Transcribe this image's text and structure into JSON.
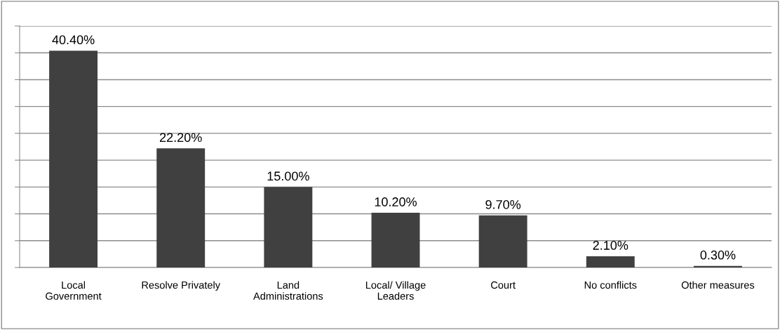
{
  "chart_data": {
    "type": "bar",
    "categories": [
      "Local\nGovernment",
      "Resolve Privately",
      "Land\nAdministrations",
      "Local/ Village\nLeaders",
      "Court",
      "No conflicts",
      "Other measures"
    ],
    "values": [
      40.4,
      22.2,
      15.0,
      10.2,
      9.7,
      2.1,
      0.3
    ],
    "value_labels": [
      "40.40%",
      "22.20%",
      "15.00%",
      "10.20%",
      "9.70%",
      "2.10%",
      "0.30%"
    ],
    "color": "#404040",
    "ylim": [
      0,
      45
    ],
    "yticks": [
      {
        "value": 0,
        "label": null
      },
      {
        "value": 5,
        "label": null
      },
      {
        "value": 10,
        "label": null
      },
      {
        "value": 15,
        "label": null
      },
      {
        "value": 20,
        "label": null
      },
      {
        "value": 25,
        "label": null
      },
      {
        "value": 30,
        "label": null
      },
      {
        "value": 35,
        "label": null
      },
      {
        "value": 40,
        "label": null
      },
      {
        "value": 45,
        "label": null
      }
    ],
    "tick_labels": "x",
    "grid": "y",
    "legend": false
  }
}
